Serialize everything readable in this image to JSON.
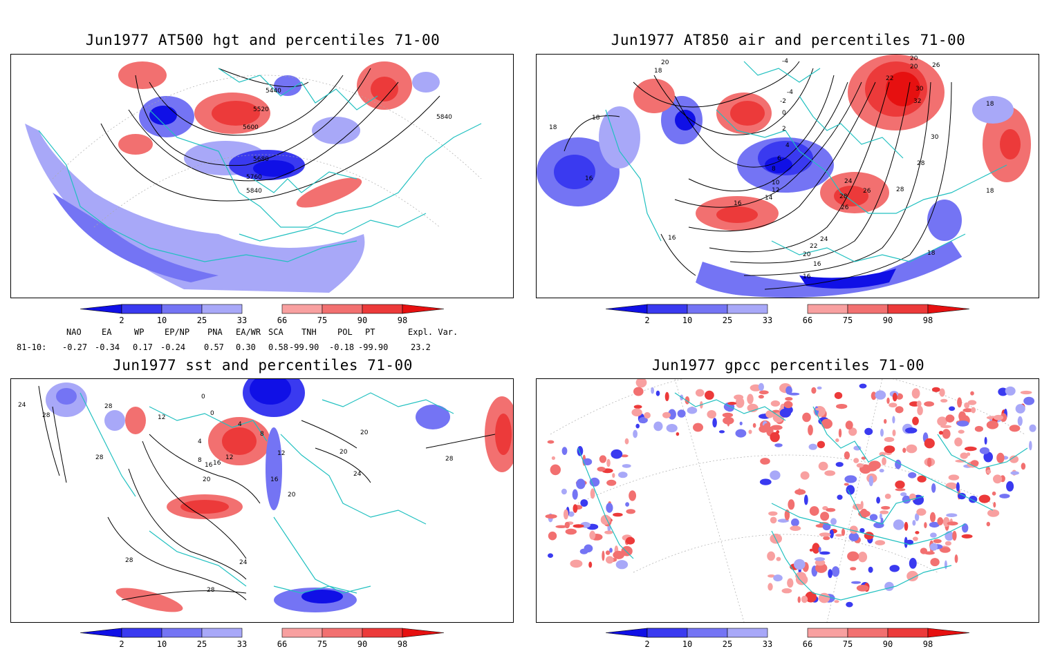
{
  "panels": {
    "p1": {
      "title": "Jun1977 AT500 hgt and percentiles 71-00",
      "contour_labels": [
        "5440",
        "5520",
        "5600",
        "5680",
        "5760",
        "5840",
        "5840"
      ]
    },
    "p2": {
      "title": "Jun1977 AT850 air and percentiles 71-00",
      "contour_labels": [
        "20",
        "18",
        "-4",
        "-4",
        "-2",
        "0",
        "2",
        "4",
        "6",
        "8",
        "10",
        "12",
        "14",
        "16",
        "16",
        "18",
        "18",
        "18",
        "18",
        "16",
        "20",
        "22",
        "24",
        "26",
        "28",
        "30",
        "32",
        "30",
        "28",
        "26",
        "24",
        "22",
        "20",
        "16",
        "16",
        "20",
        "26",
        "28",
        "18"
      ]
    },
    "p3": {
      "title": "Jun1977 sst and percentiles 71-00",
      "contour_labels": [
        "28",
        "28",
        "28",
        "12",
        "4",
        "8",
        "12",
        "16",
        "20",
        "0",
        "0",
        "4",
        "8",
        "12",
        "16",
        "20",
        "20",
        "20",
        "24",
        "28",
        "24",
        "28",
        "28",
        "16",
        "24"
      ]
    },
    "p4": {
      "title": "Jun1977 gpcc percentiles 71-00"
    }
  },
  "colorbar": {
    "labels": [
      "2",
      "10",
      "25",
      "33",
      "66",
      "75",
      "90",
      "98"
    ],
    "colors": {
      "dark_blue": "#1010e6",
      "blue": "#3a3af0",
      "mid_blue": "#7474f4",
      "light_blue": "#a8a8f8",
      "light_red": "#f8a0a0",
      "mid_red": "#f27070",
      "red": "#ec3a3a",
      "dark_red": "#e61010"
    }
  },
  "teleconnections": {
    "headers": [
      "NAO",
      "EA",
      "WP",
      "EP/NP",
      "PNA",
      "EA/WR",
      "SCA",
      "TNH",
      "POL",
      "PT",
      "Expl. Var."
    ],
    "row_label": "81-10:",
    "values": [
      "-0.27",
      "-0.34",
      "0.17",
      "-0.24",
      "0.57",
      "0.30",
      "0.58",
      "-99.90",
      "-0.18",
      "-99.90",
      "23.2"
    ]
  },
  "map_colors": {
    "coastline": "#20c0c0",
    "contour": "#000000",
    "grid": "#aaaaaa"
  }
}
